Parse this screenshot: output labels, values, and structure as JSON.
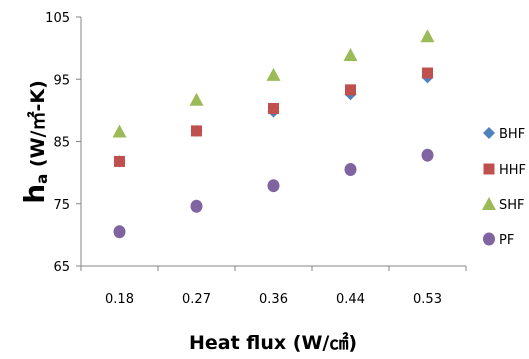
{
  "chart_data": {
    "type": "scatter",
    "categories": [
      "0.18",
      "0.27",
      "0.36",
      "0.44",
      "0.53"
    ],
    "xlabel": "Heat flux (W/㎠)",
    "ylabel": {
      "symbol": "h",
      "subscript": "a",
      "unit": " (W/㎡-K)"
    },
    "ylim": [
      65,
      105
    ],
    "yticks": [
      "65",
      "75",
      "85",
      "95",
      "105"
    ],
    "grid": false,
    "legend_position": "right",
    "series": [
      {
        "name": "BHF",
        "marker": "diamond",
        "color": "#4f81bd",
        "values": [
          81.8,
          86.7,
          89.8,
          92.6,
          95.3
        ]
      },
      {
        "name": "HHF",
        "marker": "square",
        "color": "#c0504d",
        "values": [
          81.8,
          86.7,
          90.3,
          93.3,
          96.0
        ]
      },
      {
        "name": "SHF",
        "marker": "triangle",
        "color": "#9bbb59",
        "values": [
          86.6,
          91.7,
          95.7,
          98.9,
          101.9
        ]
      },
      {
        "name": "PF",
        "marker": "circle",
        "color": "#8064a2",
        "values": [
          70.5,
          74.6,
          77.9,
          80.5,
          82.8
        ]
      }
    ]
  }
}
